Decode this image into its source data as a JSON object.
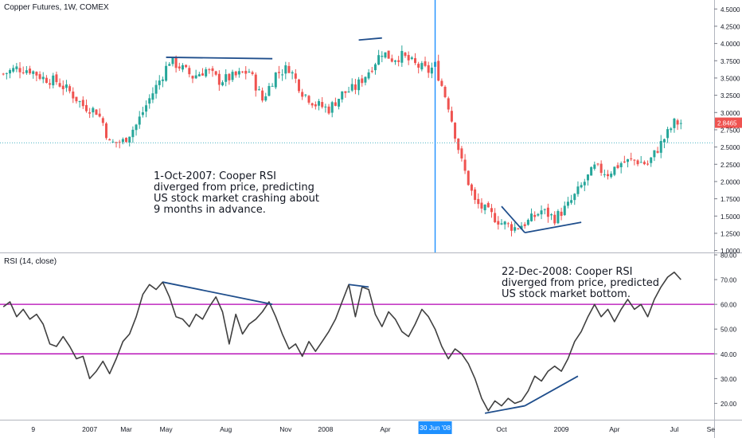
{
  "chart_data": [
    {
      "type": "candlestick",
      "title": "Copper Futures, 1W, COMEX",
      "ylim": [
        1.0,
        4.5
      ],
      "y_ticks": [
        "1.0000",
        "1.2500",
        "1.5000",
        "1.7500",
        "2.0000",
        "2.2500",
        "2.5000",
        "2.7500",
        "3.0000",
        "3.2500",
        "3.5000",
        "3.7500",
        "4.0000",
        "4.2500",
        "4.5000"
      ],
      "last_price_label": "2.8465",
      "horizontal_line_level": 2.56,
      "vertical_marker_label": "30 Jun '08",
      "close_path": [
        [
          0,
          3.56
        ],
        [
          4,
          3.64
        ],
        [
          8,
          3.62
        ],
        [
          12,
          3.5
        ],
        [
          16,
          3.45
        ],
        [
          20,
          3.3
        ],
        [
          24,
          3.1
        ],
        [
          28,
          3.02
        ],
        [
          30,
          2.85
        ],
        [
          32,
          2.55
        ],
        [
          36,
          2.58
        ],
        [
          40,
          2.82
        ],
        [
          44,
          3.2
        ],
        [
          48,
          3.55
        ],
        [
          50,
          3.75
        ],
        [
          53,
          3.67
        ],
        [
          57,
          3.52
        ],
        [
          61,
          3.62
        ],
        [
          65,
          3.46
        ],
        [
          70,
          3.53
        ],
        [
          74,
          3.6
        ],
        [
          78,
          3.18
        ],
        [
          82,
          3.56
        ],
        [
          86,
          3.65
        ],
        [
          90,
          3.3
        ],
        [
          94,
          3.12
        ],
        [
          98,
          3.05
        ],
        [
          102,
          3.27
        ],
        [
          106,
          3.36
        ],
        [
          110,
          3.6
        ],
        [
          114,
          3.88
        ],
        [
          117,
          3.78
        ],
        [
          120,
          3.82
        ],
        [
          124,
          3.69
        ],
        [
          128,
          3.6
        ],
        [
          130,
          3.68
        ],
        [
          134,
          3.1
        ],
        [
          138,
          2.28
        ],
        [
          142,
          1.7
        ],
        [
          146,
          1.55
        ],
        [
          150,
          1.4
        ],
        [
          154,
          1.33
        ],
        [
          158,
          1.42
        ],
        [
          162,
          1.58
        ],
        [
          166,
          1.47
        ],
        [
          170,
          1.65
        ],
        [
          174,
          1.93
        ],
        [
          178,
          2.2
        ],
        [
          182,
          2.12
        ],
        [
          186,
          2.27
        ],
        [
          190,
          2.31
        ],
        [
          194,
          2.25
        ],
        [
          198,
          2.55
        ],
        [
          202,
          2.85
        ],
        [
          204,
          2.85
        ]
      ],
      "trendlines": [
        {
          "from": [
            49,
            3.8
          ],
          "to": [
            81,
            3.78
          ],
          "color": "#1f4e8c"
        },
        {
          "from": [
            107,
            4.05
          ],
          "to": [
            114,
            4.08
          ],
          "color": "#1f4e8c"
        },
        {
          "from": [
            150,
            1.64
          ],
          "to": [
            157,
            1.26
          ],
          "color": "#1f4e8c"
        },
        {
          "from": [
            157,
            1.26
          ],
          "to": [
            174,
            1.41
          ],
          "color": "#1f4e8c"
        }
      ],
      "x_ticks": [
        {
          "label": "9",
          "x": 9
        },
        {
          "label": "2007",
          "x": 26
        },
        {
          "label": "Mar",
          "x": 37
        },
        {
          "label": "May",
          "x": 49
        },
        {
          "label": "Aug",
          "x": 67
        },
        {
          "label": "Nov",
          "x": 85
        },
        {
          "label": "2008",
          "x": 97
        },
        {
          "label": "Apr",
          "x": 115
        },
        {
          "label": "30 Jun '08",
          "x": 130
        },
        {
          "label": "Oct",
          "x": 150
        },
        {
          "label": "2009",
          "x": 168
        },
        {
          "label": "Apr",
          "x": 184
        },
        {
          "label": "Jul",
          "x": 202
        },
        {
          "label": "Se",
          "x": 213
        }
      ],
      "x_range": [
        -1,
        214
      ]
    },
    {
      "type": "line",
      "title": "RSI (14, close)",
      "ylim": [
        10,
        80
      ],
      "y_ticks": [
        "20.00",
        "30.00",
        "40.00",
        "50.00",
        "60.00",
        "70.00",
        "80.00"
      ],
      "bands": [
        60,
        40
      ],
      "series": [
        {
          "name": "RSI",
          "values": [
            [
              0,
              59
            ],
            [
              2,
              61
            ],
            [
              4,
              55
            ],
            [
              6,
              58
            ],
            [
              8,
              54
            ],
            [
              10,
              56
            ],
            [
              12,
              52
            ],
            [
              14,
              44
            ],
            [
              16,
              43
            ],
            [
              18,
              47
            ],
            [
              20,
              43
            ],
            [
              22,
              38
            ],
            [
              24,
              39
            ],
            [
              26,
              30
            ],
            [
              28,
              33
            ],
            [
              30,
              37
            ],
            [
              32,
              32
            ],
            [
              34,
              38
            ],
            [
              36,
              45
            ],
            [
              38,
              48
            ],
            [
              40,
              55
            ],
            [
              42,
              64
            ],
            [
              44,
              68
            ],
            [
              46,
              66
            ],
            [
              48,
              69
            ],
            [
              50,
              63
            ],
            [
              52,
              55
            ],
            [
              54,
              54
            ],
            [
              56,
              51
            ],
            [
              58,
              56
            ],
            [
              60,
              54
            ],
            [
              62,
              59
            ],
            [
              64,
              63
            ],
            [
              66,
              57
            ],
            [
              68,
              44
            ],
            [
              70,
              56
            ],
            [
              72,
              48
            ],
            [
              74,
              52
            ],
            [
              76,
              54
            ],
            [
              78,
              57
            ],
            [
              80,
              61
            ],
            [
              82,
              55
            ],
            [
              84,
              48
            ],
            [
              86,
              42
            ],
            [
              88,
              44
            ],
            [
              90,
              39
            ],
            [
              92,
              45
            ],
            [
              94,
              41
            ],
            [
              96,
              45
            ],
            [
              98,
              49
            ],
            [
              100,
              54
            ],
            [
              102,
              61
            ],
            [
              104,
              68
            ],
            [
              106,
              55
            ],
            [
              108,
              67
            ],
            [
              110,
              66
            ],
            [
              112,
              56
            ],
            [
              114,
              51
            ],
            [
              116,
              57
            ],
            [
              118,
              54
            ],
            [
              120,
              49
            ],
            [
              122,
              47
            ],
            [
              124,
              52
            ],
            [
              126,
              58
            ],
            [
              128,
              55
            ],
            [
              130,
              50
            ],
            [
              132,
              43
            ],
            [
              134,
              38
            ],
            [
              136,
              42
            ],
            [
              138,
              40
            ],
            [
              140,
              36
            ],
            [
              142,
              30
            ],
            [
              144,
              22
            ],
            [
              146,
              17
            ],
            [
              148,
              21
            ],
            [
              150,
              19
            ],
            [
              152,
              22
            ],
            [
              154,
              20
            ],
            [
              156,
              21
            ],
            [
              158,
              25
            ],
            [
              160,
              31
            ],
            [
              162,
              29
            ],
            [
              164,
              33
            ],
            [
              166,
              35
            ],
            [
              168,
              33
            ],
            [
              170,
              38
            ],
            [
              172,
              45
            ],
            [
              174,
              49
            ],
            [
              176,
              55
            ],
            [
              178,
              60
            ],
            [
              180,
              55
            ],
            [
              182,
              58
            ],
            [
              184,
              53
            ],
            [
              186,
              58
            ],
            [
              188,
              62
            ],
            [
              190,
              58
            ],
            [
              192,
              60
            ],
            [
              194,
              55
            ],
            [
              196,
              62
            ],
            [
              198,
              67
            ],
            [
              200,
              71
            ],
            [
              202,
              73
            ],
            [
              204,
              70
            ]
          ]
        }
      ],
      "trendlines": [
        {
          "from": [
            48,
            69
          ],
          "to": [
            81,
            60
          ],
          "color": "#1f4e8c"
        },
        {
          "from": [
            104,
            68
          ],
          "to": [
            110,
            67
          ],
          "color": "#1f4e8c"
        },
        {
          "from": [
            145,
            16
          ],
          "to": [
            157,
            19
          ],
          "color": "#1f4e8c"
        },
        {
          "from": [
            157,
            19
          ],
          "to": [
            173,
            31
          ],
          "color": "#1f4e8c"
        }
      ],
      "x_range": [
        -1,
        214
      ]
    }
  ],
  "annotations": {
    "note1": "1-Oct-2007: Cooper RSI\ndiverged from price, predicting\nUS stock market crashing about\n9 months in advance.",
    "note2": "22-Dec-2008: Cooper RSI\ndiverged from price, predicted\nUS stock market bottom."
  },
  "colors": {
    "up": "#26a69a",
    "down": "#ef5350",
    "rsi_line": "#404040",
    "rsi_band": "#b400b4",
    "trendline": "#1f4e8c",
    "vertical_marker": "#1e90ff",
    "price_line": "#4fb5c4",
    "grid": "#e0e3eb"
  }
}
